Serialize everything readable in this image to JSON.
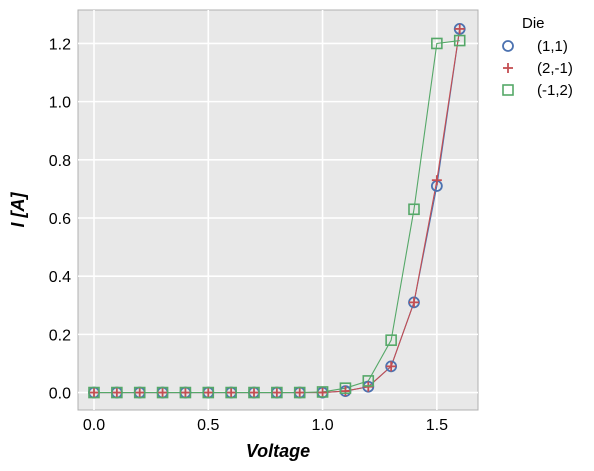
{
  "chart_data": {
    "type": "line",
    "title": "",
    "xlabel": "Voltage",
    "ylabel": "I [A]",
    "xlim": [
      -0.07,
      1.68
    ],
    "ylim": [
      -0.06,
      1.315
    ],
    "xticks": [
      0.0,
      0.5,
      1.0,
      1.5
    ],
    "xtick_labels": [
      "0.0",
      "0.5",
      "1.0",
      "1.5"
    ],
    "yticks": [
      0.0,
      0.2,
      0.4,
      0.6,
      0.8,
      1.0,
      1.2
    ],
    "ytick_labels": [
      "0.0",
      "0.2",
      "0.4",
      "0.6",
      "0.8",
      "1.0",
      "1.2"
    ],
    "grid": true,
    "legend": {
      "title": "Die",
      "placement": "outside-top-right"
    },
    "x": [
      0.0,
      0.1,
      0.2,
      0.3,
      0.4,
      0.5,
      0.6,
      0.7,
      0.8,
      0.9,
      1.0,
      1.1,
      1.2,
      1.3,
      1.4,
      1.5,
      1.6
    ],
    "series": [
      {
        "name": "(1,1)",
        "marker": "circle",
        "color": "#4c72b0",
        "line_color": "#4c72b0",
        "values": [
          0,
          0,
          0,
          0,
          0,
          0,
          0,
          0,
          0,
          0,
          0,
          0.005,
          0.02,
          0.09,
          0.31,
          0.71,
          1.25
        ]
      },
      {
        "name": "(2,-1)",
        "marker": "plus",
        "color": "#c44e52",
        "line_color": "#c44e52",
        "values": [
          0,
          0,
          0,
          0,
          0,
          0,
          0,
          0,
          0,
          0,
          0,
          0.005,
          0.02,
          0.09,
          0.31,
          0.73,
          1.25
        ]
      },
      {
        "name": "(-1,2)",
        "marker": "square",
        "color": "#55a868",
        "line_color": "#55a868",
        "values": [
          0,
          0,
          0,
          0,
          0,
          0,
          0,
          0,
          0,
          0,
          0.002,
          0.015,
          0.04,
          0.18,
          0.63,
          1.2,
          1.21
        ]
      }
    ]
  }
}
